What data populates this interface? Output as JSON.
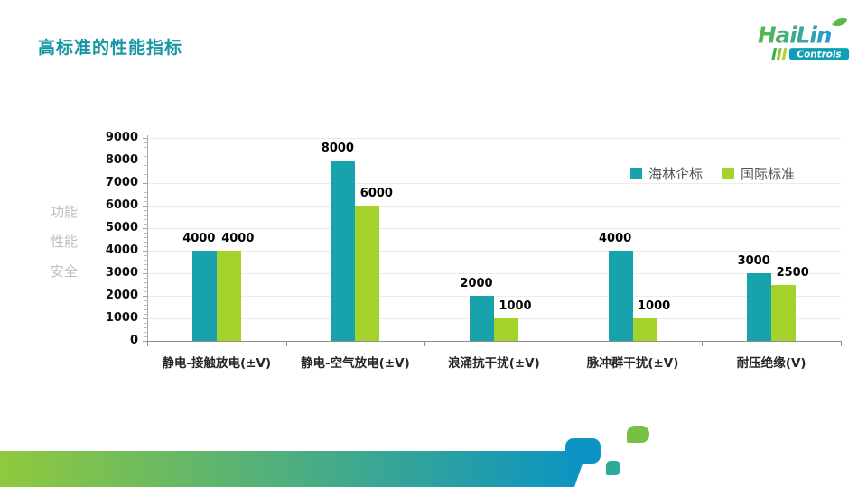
{
  "header": {
    "title": "高标准的性能指标"
  },
  "logo": {
    "brand": "HaiLin",
    "subtext": "Controls"
  },
  "chart_data": {
    "type": "bar",
    "title": "",
    "categories": [
      "静电-接触放电(±V)",
      "静电-空气放电(±V)",
      "浪涌抗干扰(±V)",
      "脉冲群干扰(±V)",
      "耐压绝缘(V)"
    ],
    "series": [
      {
        "name": "海林企标",
        "color": "#18A2AB",
        "values": [
          4000,
          8000,
          2000,
          4000,
          3000
        ]
      },
      {
        "name": "国际标准",
        "color": "#A3D22B",
        "values": [
          4000,
          6000,
          1000,
          1000,
          2500
        ]
      }
    ],
    "ylabel": "功能\n性能\n安全",
    "xlabel": "",
    "ylim": [
      0,
      9000
    ],
    "ytick_step": 1000,
    "y_minor_step": 200,
    "grid": true,
    "legend_position": "top-right",
    "gridline_color": "#ECECEC",
    "axis_color": "#8F8F8F"
  },
  "footer": {
    "gradient_from": "#90C93C",
    "gradient_to": "#0A93C4",
    "deco_colors": [
      "#0D94C5",
      "#2BAC9A",
      "#76C044"
    ]
  }
}
